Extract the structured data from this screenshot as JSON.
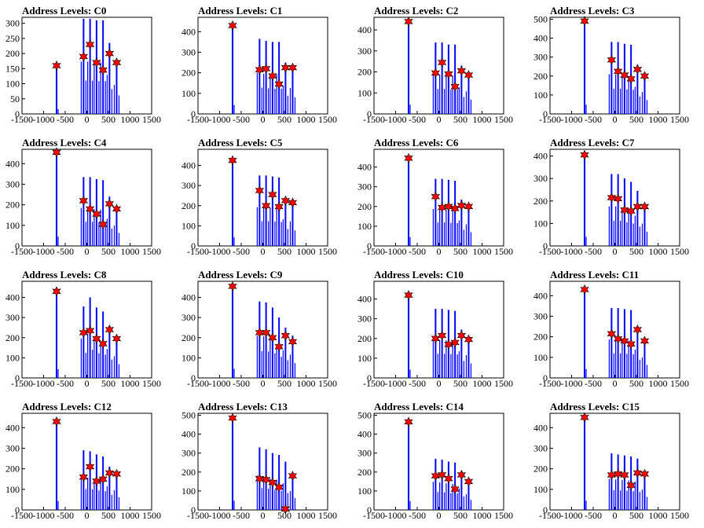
{
  "chart_data": [
    {
      "title": "Address Levels: C0",
      "type": "bar",
      "xlim": [
        -1500,
        1500
      ],
      "ylim": [
        0,
        320
      ],
      "xticks": [
        "-1500",
        "-1000",
        "-500",
        "0",
        "500",
        "1000",
        "1500"
      ],
      "yticks": [
        "0",
        "50",
        "100",
        "150",
        "200",
        "250",
        "300"
      ],
      "peaks": [
        {
          "x": -700,
          "y": 160,
          "marker": 160
        },
        {
          "x": -75,
          "y": 315,
          "marker": 190
        },
        {
          "x": 75,
          "y": 315,
          "marker": 230
        },
        {
          "x": 225,
          "y": 310,
          "marker": 170
        },
        {
          "x": 375,
          "y": 310,
          "marker": 145
        },
        {
          "x": 525,
          "y": 235,
          "marker": 200
        },
        {
          "x": 690,
          "y": 175,
          "marker": 170
        }
      ]
    },
    {
      "title": "Address Levels: C1",
      "type": "bar",
      "xlim": [
        -1500,
        1500
      ],
      "ylim": [
        0,
        470
      ],
      "xticks": [
        "-1500",
        "-1000",
        "-500",
        "0",
        "500",
        "1000",
        "1500"
      ],
      "yticks": [
        "0",
        "100",
        "200",
        "300",
        "400"
      ],
      "peaks": [
        {
          "x": -700,
          "y": 430,
          "marker": 430
        },
        {
          "x": -75,
          "y": 365,
          "marker": 215
        },
        {
          "x": 75,
          "y": 355,
          "marker": 220
        },
        {
          "x": 225,
          "y": 350,
          "marker": 185
        },
        {
          "x": 375,
          "y": 350,
          "marker": 145
        },
        {
          "x": 525,
          "y": 250,
          "marker": 225
        },
        {
          "x": 690,
          "y": 230,
          "marker": 225
        }
      ]
    },
    {
      "title": "Address Levels: C2",
      "type": "bar",
      "xlim": [
        -1500,
        1500
      ],
      "ylim": [
        0,
        460
      ],
      "xticks": [
        "-1500",
        "-1000",
        "-500",
        "0",
        "500",
        "1000",
        "1500"
      ],
      "yticks": [
        "0",
        "100",
        "200",
        "300",
        "400"
      ],
      "peaks": [
        {
          "x": -700,
          "y": 440,
          "marker": 440
        },
        {
          "x": -75,
          "y": 340,
          "marker": 195
        },
        {
          "x": 75,
          "y": 340,
          "marker": 245
        },
        {
          "x": 225,
          "y": 330,
          "marker": 190
        },
        {
          "x": 375,
          "y": 330,
          "marker": 130
        },
        {
          "x": 525,
          "y": 230,
          "marker": 205
        },
        {
          "x": 690,
          "y": 195,
          "marker": 185
        }
      ]
    },
    {
      "title": "Address Levels: C3",
      "type": "bar",
      "xlim": [
        -1500,
        1500
      ],
      "ylim": [
        0,
        510
      ],
      "xticks": [
        "-1500",
        "-1000",
        "-500",
        "0",
        "500",
        "1000",
        "1500"
      ],
      "yticks": [
        "0",
        "100",
        "200",
        "300",
        "400",
        "500"
      ],
      "peaks": [
        {
          "x": -700,
          "y": 490,
          "marker": 490
        },
        {
          "x": -75,
          "y": 380,
          "marker": 285
        },
        {
          "x": 75,
          "y": 380,
          "marker": 225
        },
        {
          "x": 225,
          "y": 370,
          "marker": 205
        },
        {
          "x": 375,
          "y": 365,
          "marker": 185
        },
        {
          "x": 525,
          "y": 260,
          "marker": 235
        },
        {
          "x": 690,
          "y": 210,
          "marker": 200
        }
      ]
    },
    {
      "title": "Address Levels: C4",
      "type": "bar",
      "xlim": [
        -1500,
        1500
      ],
      "ylim": [
        0,
        470
      ],
      "xticks": [
        "-1500",
        "-1000",
        "-500",
        "0",
        "500",
        "1000",
        "1500"
      ],
      "yticks": [
        "0",
        "100",
        "200",
        "300",
        "400"
      ],
      "peaks": [
        {
          "x": -700,
          "y": 455,
          "marker": 455
        },
        {
          "x": -75,
          "y": 335,
          "marker": 220
        },
        {
          "x": 75,
          "y": 335,
          "marker": 180
        },
        {
          "x": 225,
          "y": 325,
          "marker": 155
        },
        {
          "x": 375,
          "y": 320,
          "marker": 105
        },
        {
          "x": 525,
          "y": 240,
          "marker": 205
        },
        {
          "x": 690,
          "y": 180,
          "marker": 180
        }
      ]
    },
    {
      "title": "Address Levels: C5",
      "type": "bar",
      "xlim": [
        -1500,
        1500
      ],
      "ylim": [
        0,
        480
      ],
      "xticks": [
        "-1500",
        "-1000",
        "-500",
        "0",
        "500",
        "1000",
        "1500"
      ],
      "yticks": [
        "0",
        "100",
        "200",
        "300",
        "400"
      ],
      "peaks": [
        {
          "x": -700,
          "y": 425,
          "marker": 425
        },
        {
          "x": -75,
          "y": 350,
          "marker": 275
        },
        {
          "x": 75,
          "y": 350,
          "marker": 200
        },
        {
          "x": 225,
          "y": 345,
          "marker": 255
        },
        {
          "x": 375,
          "y": 340,
          "marker": 195
        },
        {
          "x": 525,
          "y": 240,
          "marker": 225
        },
        {
          "x": 690,
          "y": 220,
          "marker": 215
        }
      ]
    },
    {
      "title": "Address Levels: C6",
      "type": "bar",
      "xlim": [
        -1500,
        1500
      ],
      "ylim": [
        0,
        490
      ],
      "xticks": [
        "-1500",
        "-1000",
        "-500",
        "0",
        "500",
        "1000",
        "1500"
      ],
      "yticks": [
        "0",
        "100",
        "200",
        "300",
        "400"
      ],
      "peaks": [
        {
          "x": -700,
          "y": 445,
          "marker": 445
        },
        {
          "x": -75,
          "y": 340,
          "marker": 250
        },
        {
          "x": 75,
          "y": 340,
          "marker": 195
        },
        {
          "x": 225,
          "y": 335,
          "marker": 200
        },
        {
          "x": 375,
          "y": 330,
          "marker": 190
        },
        {
          "x": 525,
          "y": 235,
          "marker": 205
        },
        {
          "x": 690,
          "y": 200,
          "marker": 200
        }
      ]
    },
    {
      "title": "Address Levels: C7",
      "type": "bar",
      "xlim": [
        -1500,
        1500
      ],
      "ylim": [
        0,
        430
      ],
      "xticks": [
        "-1500",
        "-1000",
        "-500",
        "0",
        "500",
        "1000",
        "1500"
      ],
      "yticks": [
        "0",
        "100",
        "200",
        "300",
        "400"
      ],
      "peaks": [
        {
          "x": -700,
          "y": 405,
          "marker": 405
        },
        {
          "x": -75,
          "y": 320,
          "marker": 215
        },
        {
          "x": 75,
          "y": 320,
          "marker": 210
        },
        {
          "x": 225,
          "y": 300,
          "marker": 160
        },
        {
          "x": 375,
          "y": 285,
          "marker": 155
        },
        {
          "x": 525,
          "y": 245,
          "marker": 175
        },
        {
          "x": 690,
          "y": 180,
          "marker": 175
        }
      ]
    },
    {
      "title": "Address Levels: C8",
      "type": "bar",
      "xlim": [
        -1500,
        1500
      ],
      "ylim": [
        0,
        480
      ],
      "xticks": [
        "-1500",
        "-1000",
        "-500",
        "0",
        "500",
        "1000",
        "1500"
      ],
      "yticks": [
        "0",
        "100",
        "200",
        "300",
        "400"
      ],
      "peaks": [
        {
          "x": -700,
          "y": 430,
          "marker": 430
        },
        {
          "x": -75,
          "y": 355,
          "marker": 225
        },
        {
          "x": 75,
          "y": 400,
          "marker": 235
        },
        {
          "x": 225,
          "y": 350,
          "marker": 195
        },
        {
          "x": 375,
          "y": 330,
          "marker": 170
        },
        {
          "x": 525,
          "y": 260,
          "marker": 240
        },
        {
          "x": 690,
          "y": 195,
          "marker": 195
        }
      ]
    },
    {
      "title": "Address Levels: C9",
      "type": "bar",
      "xlim": [
        -1500,
        1500
      ],
      "ylim": [
        0,
        480
      ],
      "xticks": [
        "-1500",
        "-1000",
        "-500",
        "0",
        "500",
        "1000",
        "1500"
      ],
      "yticks": [
        "0",
        "100",
        "200",
        "300",
        "400"
      ],
      "peaks": [
        {
          "x": -700,
          "y": 455,
          "marker": 455
        },
        {
          "x": -75,
          "y": 380,
          "marker": 225
        },
        {
          "x": 75,
          "y": 375,
          "marker": 225
        },
        {
          "x": 225,
          "y": 350,
          "marker": 200
        },
        {
          "x": 375,
          "y": 300,
          "marker": 155
        },
        {
          "x": 525,
          "y": 250,
          "marker": 210
        },
        {
          "x": 690,
          "y": 210,
          "marker": 180
        }
      ]
    },
    {
      "title": "Address Levels: C10",
      "type": "bar",
      "xlim": [
        -1500,
        1500
      ],
      "ylim": [
        0,
        490
      ],
      "xticks": [
        "-1500",
        "-1000",
        "-500",
        "0",
        "500",
        "1000",
        "1500"
      ],
      "yticks": [
        "0",
        "100",
        "200",
        "300",
        "400"
      ],
      "peaks": [
        {
          "x": -700,
          "y": 420,
          "marker": 420
        },
        {
          "x": -75,
          "y": 350,
          "marker": 200
        },
        {
          "x": 75,
          "y": 350,
          "marker": 215
        },
        {
          "x": 225,
          "y": 345,
          "marker": 170
        },
        {
          "x": 375,
          "y": 340,
          "marker": 180
        },
        {
          "x": 525,
          "y": 245,
          "marker": 215
        },
        {
          "x": 690,
          "y": 210,
          "marker": 195
        }
      ]
    },
    {
      "title": "Address Levels: C11",
      "type": "bar",
      "xlim": [
        -1500,
        1500
      ],
      "ylim": [
        0,
        470
      ],
      "xticks": [
        "-1500",
        "-1000",
        "-500",
        "0",
        "500",
        "1000",
        "1500"
      ],
      "yticks": [
        "0",
        "100",
        "200",
        "300",
        "400"
      ],
      "peaks": [
        {
          "x": -700,
          "y": 430,
          "marker": 430
        },
        {
          "x": -75,
          "y": 340,
          "marker": 215
        },
        {
          "x": 75,
          "y": 340,
          "marker": 190
        },
        {
          "x": 225,
          "y": 335,
          "marker": 180
        },
        {
          "x": 375,
          "y": 330,
          "marker": 165
        },
        {
          "x": 525,
          "y": 250,
          "marker": 235
        },
        {
          "x": 690,
          "y": 180,
          "marker": 180
        }
      ]
    },
    {
      "title": "Address Levels: C12",
      "type": "bar",
      "xlim": [
        -1500,
        1500
      ],
      "ylim": [
        0,
        470
      ],
      "xticks": [
        "-1500",
        "-1000",
        "-500",
        "0",
        "500",
        "1000",
        "1500"
      ],
      "yticks": [
        "0",
        "100",
        "200",
        "300",
        "400"
      ],
      "peaks": [
        {
          "x": -700,
          "y": 430,
          "marker": 430
        },
        {
          "x": -75,
          "y": 290,
          "marker": 160
        },
        {
          "x": 75,
          "y": 285,
          "marker": 210
        },
        {
          "x": 225,
          "y": 270,
          "marker": 140
        },
        {
          "x": 375,
          "y": 260,
          "marker": 150
        },
        {
          "x": 525,
          "y": 210,
          "marker": 180
        },
        {
          "x": 690,
          "y": 175,
          "marker": 175
        }
      ]
    },
    {
      "title": "Address Levels: C13",
      "type": "bar",
      "xlim": [
        -1500,
        1500
      ],
      "ylim": [
        0,
        510
      ],
      "xticks": [
        "-1500",
        "-1000",
        "-500",
        "0",
        "500",
        "1000",
        "1500"
      ],
      "yticks": [
        "0",
        "100",
        "200",
        "300",
        "400",
        "500"
      ],
      "peaks": [
        {
          "x": -700,
          "y": 485,
          "marker": 485
        },
        {
          "x": -75,
          "y": 330,
          "marker": 165
        },
        {
          "x": 75,
          "y": 320,
          "marker": 160
        },
        {
          "x": 225,
          "y": 300,
          "marker": 145
        },
        {
          "x": 375,
          "y": 290,
          "marker": 120
        },
        {
          "x": 525,
          "y": 255,
          "marker": 5
        },
        {
          "x": 690,
          "y": 180,
          "marker": 180
        }
      ]
    },
    {
      "title": "Address Levels: C14",
      "type": "bar",
      "xlim": [
        -1500,
        1500
      ],
      "ylim": [
        0,
        510
      ],
      "xticks": [
        "-1500",
        "-1000",
        "-500",
        "0",
        "500",
        "1000",
        "1500"
      ],
      "yticks": [
        "0",
        "100",
        "200",
        "300",
        "400",
        "500"
      ],
      "peaks": [
        {
          "x": -700,
          "y": 465,
          "marker": 465
        },
        {
          "x": -75,
          "y": 270,
          "marker": 180
        },
        {
          "x": 75,
          "y": 265,
          "marker": 185
        },
        {
          "x": 225,
          "y": 255,
          "marker": 165
        },
        {
          "x": 375,
          "y": 250,
          "marker": 110
        },
        {
          "x": 525,
          "y": 205,
          "marker": 185
        },
        {
          "x": 690,
          "y": 150,
          "marker": 150
        }
      ]
    },
    {
      "title": "Address Levels: C15",
      "type": "bar",
      "xlim": [
        -1500,
        1500
      ],
      "ylim": [
        0,
        470
      ],
      "xticks": [
        "-1500",
        "-1000",
        "-500",
        "0",
        "500",
        "1000",
        "1500"
      ],
      "yticks": [
        "0",
        "100",
        "200",
        "300",
        "400"
      ],
      "peaks": [
        {
          "x": -700,
          "y": 450,
          "marker": 450
        },
        {
          "x": -75,
          "y": 275,
          "marker": 170
        },
        {
          "x": 75,
          "y": 270,
          "marker": 175
        },
        {
          "x": 225,
          "y": 265,
          "marker": 170
        },
        {
          "x": 375,
          "y": 260,
          "marker": 120
        },
        {
          "x": 525,
          "y": 250,
          "marker": 180
        },
        {
          "x": 690,
          "y": 180,
          "marker": 175
        }
      ]
    }
  ],
  "colors": {
    "bar": "#0000ff",
    "marker": "#ff0000",
    "axis": "#000000"
  }
}
